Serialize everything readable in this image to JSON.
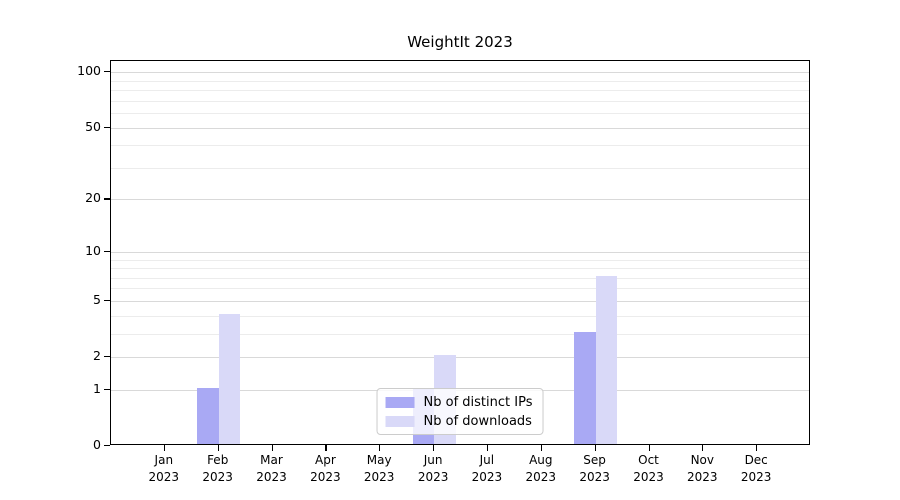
{
  "figure": {
    "title": "WeightIt 2023"
  },
  "chart_data": {
    "type": "bar",
    "title": "WeightIt 2023",
    "x_axis": {
      "categories": [
        "Jan",
        "Feb",
        "Mar",
        "Apr",
        "May",
        "Jun",
        "Jul",
        "Aug",
        "Sep",
        "Oct",
        "Nov",
        "Dec"
      ],
      "year_label": "2023"
    },
    "y_axis": {
      "scale": "log10(value+1)",
      "major_ticks": [
        0,
        1,
        2,
        5,
        10,
        20,
        50,
        100
      ],
      "minor_ticks": [
        3,
        4,
        6,
        7,
        8,
        9,
        30,
        40,
        60,
        70,
        80,
        90
      ],
      "ylim": [
        0,
        115
      ],
      "grid": true
    },
    "series": [
      {
        "name": "Nb of distinct IPs",
        "color": "#a9a9f4",
        "values": [
          0,
          1,
          0,
          0,
          0,
          1,
          0,
          0,
          3,
          0,
          0,
          0
        ]
      },
      {
        "name": "Nb of downloads",
        "color": "#d9d9f8",
        "values": [
          0,
          4,
          0,
          0,
          0,
          2,
          0,
          0,
          7,
          0,
          0,
          0
        ]
      }
    ],
    "legend_position": "lower center"
  },
  "colors": {
    "major_grid": "#d9d9d9",
    "minor_grid": "#ececec",
    "spine": "#000000",
    "legend_border": "#cccccc",
    "background": "#ffffff"
  }
}
